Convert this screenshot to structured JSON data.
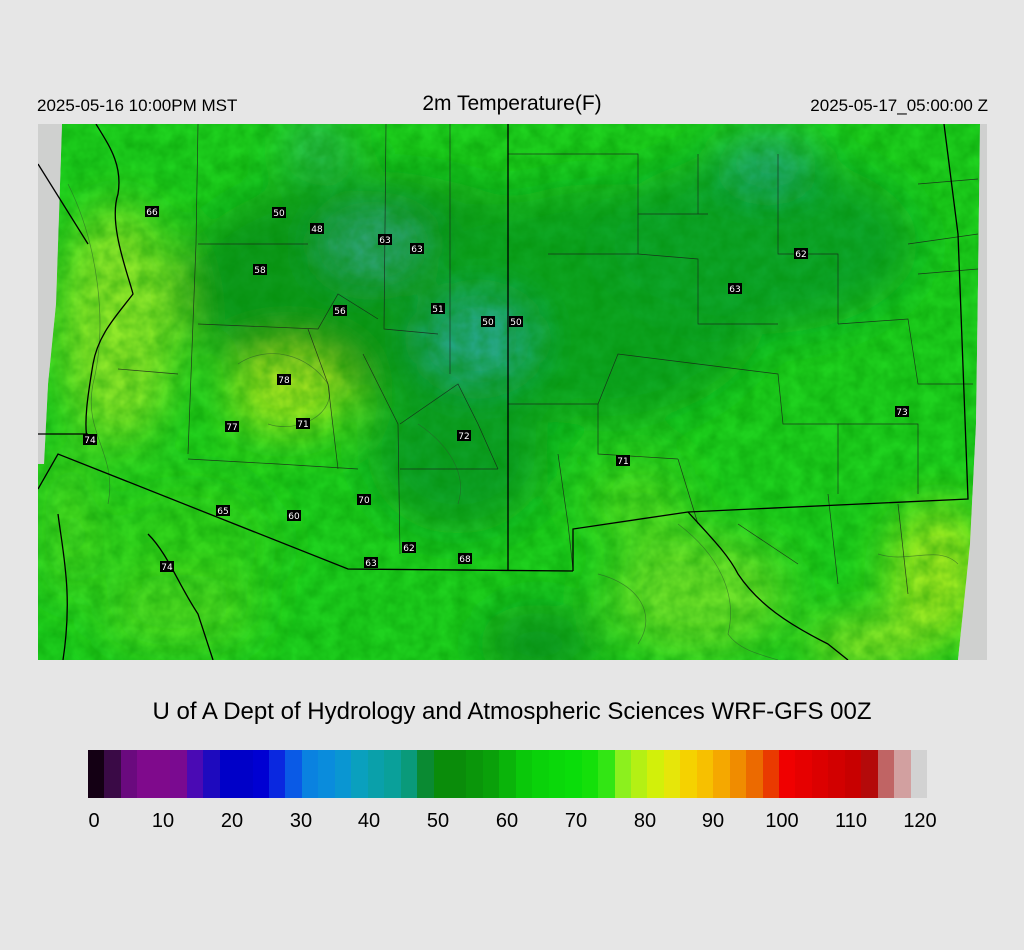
{
  "header": {
    "valid_local": "2025-05-16 10:00PM MST",
    "title": "2m Temperature(F)",
    "valid_utc": "2025-05-17_05:00:00 Z"
  },
  "map": {
    "field": "2m temperature",
    "units": "F",
    "region": "Arizona / New Mexico and surroundings",
    "stations": [
      {
        "value": "66"
      },
      {
        "value": "50"
      },
      {
        "value": "48"
      },
      {
        "value": "63"
      },
      {
        "value": "63"
      },
      {
        "value": "58"
      },
      {
        "value": "56"
      },
      {
        "value": "51"
      },
      {
        "value": "50"
      },
      {
        "value": "50"
      },
      {
        "value": "62"
      },
      {
        "value": "63"
      },
      {
        "value": "78"
      },
      {
        "value": "77"
      },
      {
        "value": "71"
      },
      {
        "value": "72"
      },
      {
        "value": "71"
      },
      {
        "value": "73"
      },
      {
        "value": "74"
      },
      {
        "value": "65"
      },
      {
        "value": "60"
      },
      {
        "value": "70"
      },
      {
        "value": "62"
      },
      {
        "value": "63"
      },
      {
        "value": "68"
      },
      {
        "value": "74"
      }
    ]
  },
  "footer": {
    "credit": "U of A Dept of Hydrology and Atmospheric Sciences WRF-GFS 00Z"
  },
  "colorbar": {
    "min": 0,
    "max": 120,
    "ticks": [
      "0",
      "10",
      "20",
      "30",
      "40",
      "50",
      "60",
      "70",
      "80",
      "90",
      "100",
      "110",
      "120"
    ],
    "colors": [
      "#140014",
      "#3a0a46",
      "#6a0a7e",
      "#7f0a8c",
      "#7f0a8c",
      "#7a0a90",
      "#4a0ab4",
      "#1e0abe",
      "#0000c8",
      "#0000c8",
      "#0000d2",
      "#0a28e0",
      "#0a5ae6",
      "#0a82e0",
      "#0a8cdc",
      "#0a96d2",
      "#0aa0be",
      "#0aa0aa",
      "#0aa09a",
      "#0a9a7a",
      "#0a8a32",
      "#0a8c0a",
      "#0a8c0a",
      "#0a960a",
      "#0aa00a",
      "#0ab40a",
      "#0ac80a",
      "#0ad20a",
      "#0ad80a",
      "#0add0a",
      "#14e00a",
      "#32e614",
      "#8cf01e",
      "#b4f014",
      "#d2f00a",
      "#e6e60a",
      "#f5d200",
      "#f7c000",
      "#f5a800",
      "#f08c00",
      "#ec6a00",
      "#ea3a00",
      "#f00000",
      "#e60000",
      "#dc0000",
      "#d20000",
      "#c80000",
      "#b40a0a",
      "#c06464",
      "#d2a0a0",
      "#d2d2d2"
    ]
  }
}
